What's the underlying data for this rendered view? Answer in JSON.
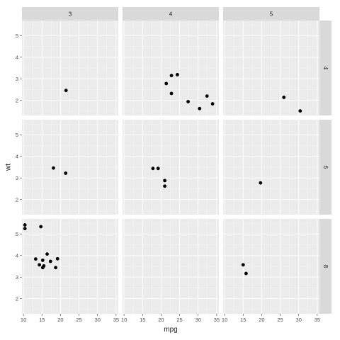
{
  "chart_data": {
    "type": "scatter",
    "facet": "grid",
    "xlabel": "mpg",
    "ylabel": "wt",
    "x_ticks": [
      10,
      15,
      20,
      25,
      30,
      35
    ],
    "y_ticks": [
      2,
      3,
      4,
      5
    ],
    "xlim": [
      9.6,
      35.6
    ],
    "ylim": [
      1.3,
      5.7
    ],
    "grid": true,
    "colors": {
      "panel_bg": "#ebebeb",
      "strip_bg": "#d9d9d9",
      "grid_major": "#ffffff",
      "point": "#000000"
    },
    "col_strips": [
      "3",
      "4",
      "5"
    ],
    "row_strips": [
      "4",
      "6",
      "8"
    ],
    "panels": [
      {
        "col": "3",
        "row": "4",
        "points": [
          [
            21.5,
            2.46
          ]
        ]
      },
      {
        "col": "4",
        "row": "4",
        "points": [
          [
            22.8,
            2.32
          ],
          [
            24.4,
            3.19
          ],
          [
            22.8,
            3.15
          ],
          [
            32.4,
            2.2
          ],
          [
            30.4,
            1.62
          ],
          [
            33.9,
            1.84
          ],
          [
            27.3,
            1.94
          ],
          [
            21.4,
            2.78
          ]
        ]
      },
      {
        "col": "5",
        "row": "4",
        "points": [
          [
            26.0,
            2.14
          ],
          [
            30.4,
            1.51
          ]
        ]
      },
      {
        "col": "3",
        "row": "6",
        "points": [
          [
            21.4,
            3.22
          ],
          [
            18.1,
            3.46
          ]
        ]
      },
      {
        "col": "4",
        "row": "6",
        "points": [
          [
            21.0,
            2.62
          ],
          [
            21.0,
            2.88
          ],
          [
            19.2,
            3.44
          ],
          [
            17.8,
            3.44
          ]
        ]
      },
      {
        "col": "5",
        "row": "6",
        "points": [
          [
            19.7,
            2.77
          ]
        ]
      },
      {
        "col": "3",
        "row": "8",
        "points": [
          [
            18.7,
            3.44
          ],
          [
            14.3,
            3.57
          ],
          [
            16.4,
            4.07
          ],
          [
            17.3,
            3.73
          ],
          [
            15.2,
            3.78
          ],
          [
            10.4,
            5.25
          ],
          [
            10.4,
            5.42
          ],
          [
            14.7,
            5.34
          ],
          [
            15.5,
            3.52
          ],
          [
            15.2,
            3.44
          ],
          [
            13.3,
            3.84
          ],
          [
            19.2,
            3.85
          ]
        ]
      },
      {
        "col": "4",
        "row": "8",
        "points": []
      },
      {
        "col": "5",
        "row": "8",
        "points": [
          [
            15.8,
            3.17
          ],
          [
            15.0,
            3.57
          ]
        ]
      }
    ]
  }
}
